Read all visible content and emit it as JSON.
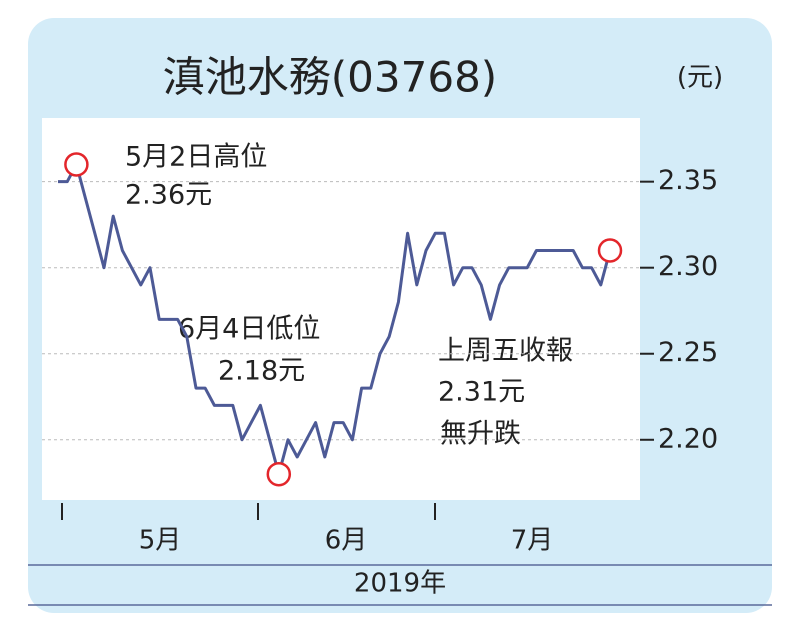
{
  "chart_data": {
    "type": "line",
    "title": "滇池水務(03768)",
    "unit_label": "(元)",
    "categories": [
      null,
      null,
      null,
      null,
      null,
      null,
      null,
      null,
      null,
      null,
      null,
      null,
      null,
      null,
      null,
      null,
      null,
      null,
      null,
      null,
      null,
      null,
      null,
      null,
      null,
      null,
      null,
      null,
      null,
      null,
      null,
      null,
      null,
      null,
      null,
      null,
      null,
      null,
      null,
      null,
      null,
      null,
      null,
      null,
      null,
      null,
      null,
      null,
      null,
      null,
      null,
      null,
      null,
      null,
      null,
      null,
      null,
      null,
      null,
      null,
      null
    ],
    "series": [
      {
        "name": "滇池水務",
        "color": "#4d5a96",
        "values": [
          2.35,
          2.35,
          2.36,
          2.34,
          2.32,
          2.3,
          2.33,
          2.31,
          2.3,
          2.29,
          2.3,
          2.27,
          2.27,
          2.27,
          2.26,
          2.23,
          2.23,
          2.22,
          2.22,
          2.22,
          2.2,
          2.21,
          2.22,
          2.2,
          2.18,
          2.2,
          2.19,
          2.2,
          2.21,
          2.19,
          2.21,
          2.21,
          2.2,
          2.23,
          2.23,
          2.25,
          2.26,
          2.28,
          2.32,
          2.29,
          2.31,
          2.32,
          2.32,
          2.29,
          2.3,
          2.3,
          2.29,
          2.27,
          2.29,
          2.3,
          2.3,
          2.3,
          2.31,
          2.31,
          2.31,
          2.31,
          2.31,
          2.3,
          2.3,
          2.29,
          2.31
        ]
      }
    ],
    "ylim": [
      2.165,
      2.387
    ],
    "yticks": [
      {
        "value": 2.2,
        "label": "2.20"
      },
      {
        "value": 2.25,
        "label": "2.25"
      },
      {
        "value": 2.3,
        "label": "2.30"
      },
      {
        "value": 2.35,
        "label": "2.35"
      }
    ],
    "grid": true,
    "month_labels": [
      "5月",
      "6月",
      "7月"
    ],
    "year_label": "2019年",
    "annotations": {
      "high": [
        "5月2日高位",
        "2.36元"
      ],
      "low": [
        "6月4日低位",
        "2.18元"
      ],
      "last": [
        "上周五收報",
        "2.31元",
        "無升跌"
      ]
    },
    "marker_color": "#e3262b"
  }
}
